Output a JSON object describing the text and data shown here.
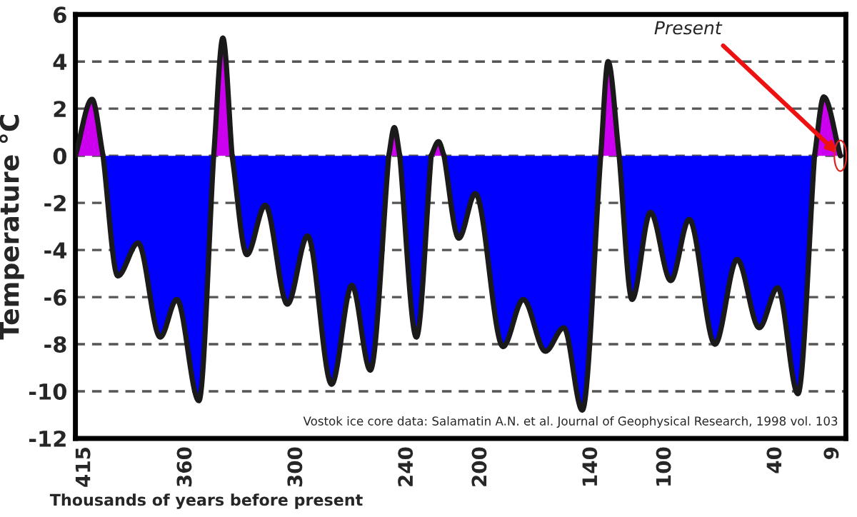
{
  "chart_data": {
    "type": "area",
    "xlabel": "Thousands of years before present",
    "ylabel": "Temperature °C",
    "xlim": [
      420,
      2
    ],
    "xticks": [
      415,
      360,
      300,
      240,
      200,
      140,
      100,
      40,
      9
    ],
    "ylim": [
      -12,
      6
    ],
    "yticks": [
      -12,
      -10,
      -8,
      -6,
      -4,
      -2,
      0,
      2,
      4,
      6
    ],
    "grid": "y",
    "series": [
      {
        "color": "#cc00ee",
        "x": [
          420,
          411,
          405
        ],
        "values": [
          0,
          2.4,
          0
        ]
      },
      {
        "color": "#0000ff",
        "x": [
          405,
          397,
          386,
          374,
          365,
          353,
          345
        ],
        "values": [
          0,
          -5.1,
          -3.7,
          -7.7,
          -6.1,
          -10.4,
          0
        ]
      },
      {
        "color": "#cc00ee",
        "x": [
          345,
          340,
          335
        ],
        "values": [
          0,
          5.0,
          0
        ]
      },
      {
        "color": "#0000ff",
        "x": [
          335,
          327,
          317,
          305,
          294,
          281,
          270,
          260,
          250
        ],
        "values": [
          0,
          -4.2,
          -2.1,
          -6.3,
          -3.4,
          -9.7,
          -5.5,
          -9.1,
          0
        ]
      },
      {
        "color": "#cc00ee",
        "x": [
          250,
          247,
          244
        ],
        "values": [
          0,
          1.2,
          0
        ]
      },
      {
        "color": "#0000ff",
        "x": [
          244,
          235,
          227
        ],
        "values": [
          0,
          -7.7,
          0
        ]
      },
      {
        "color": "#cc00ee",
        "x": [
          227,
          223,
          220
        ],
        "values": [
          0,
          0.6,
          0
        ]
      },
      {
        "color": "#0000ff",
        "x": [
          220,
          212,
          203,
          188,
          177,
          165,
          155,
          145,
          135
        ],
        "values": [
          0,
          -3.5,
          -1.6,
          -8.1,
          -6.1,
          -8.3,
          -7.3,
          -10.8,
          0
        ]
      },
      {
        "color": "#cc00ee",
        "x": [
          135,
          131,
          125
        ],
        "values": [
          0,
          4.0,
          0
        ]
      },
      {
        "color": "#0000ff",
        "x": [
          125,
          118,
          108,
          97,
          87,
          73,
          61,
          49,
          39,
          28,
          19
        ],
        "values": [
          0,
          -6.1,
          -2.4,
          -5.3,
          -2.7,
          -8.0,
          -4.4,
          -7.3,
          -5.6,
          -10.1,
          0
        ]
      },
      {
        "color": "#cc00ee",
        "x": [
          19,
          14,
          5
        ],
        "values": [
          0,
          2.5,
          0
        ]
      }
    ],
    "annotations": [
      {
        "text": "Present",
        "x": 5,
        "y": 0
      },
      "Vostok ice core data: Salamatin A.N. et al. Journal of Geophysical Research, 1998 vol. 103"
    ]
  }
}
